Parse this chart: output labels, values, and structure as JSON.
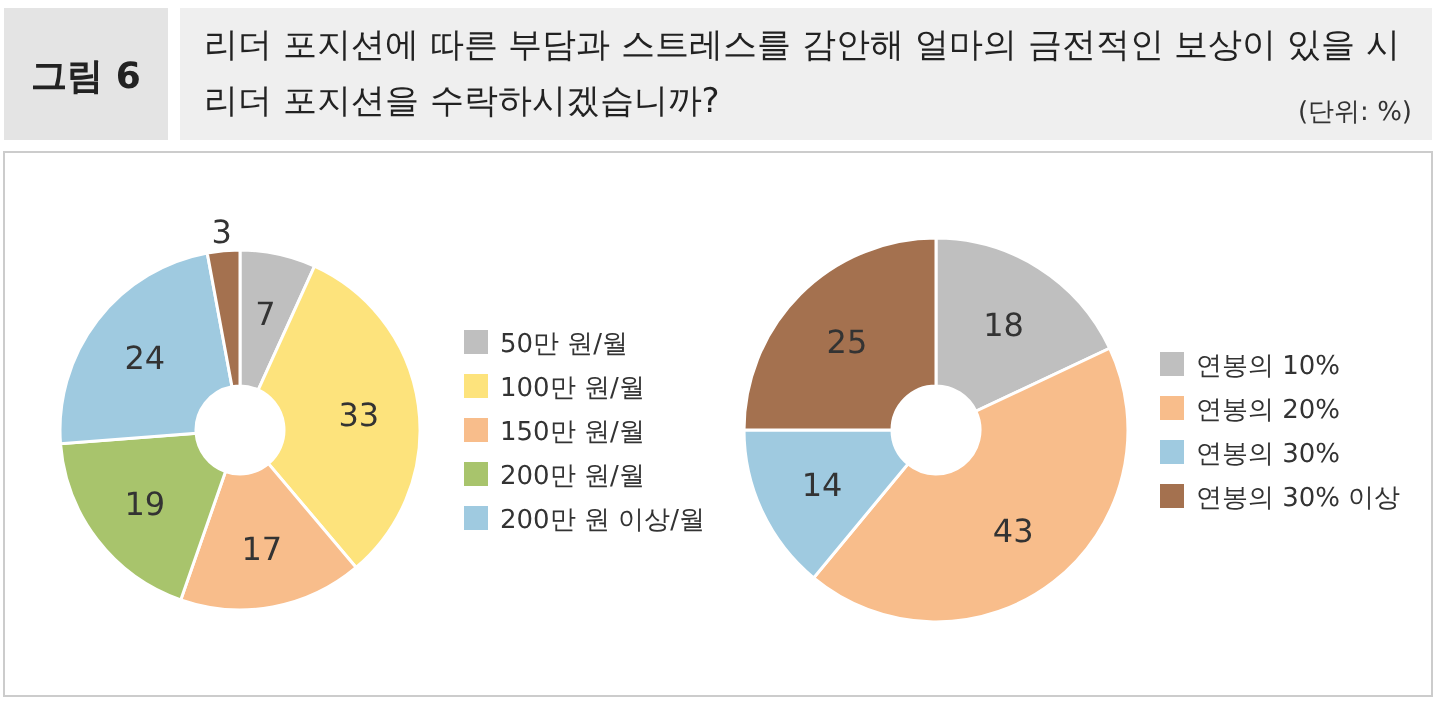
{
  "chart_data": [
    {
      "type": "donut",
      "title": "리더 포지션에 따른 부담과 스트레스를 감안해 얼마의 금전적인 보상이 있을 시 리더 포지션을 수락하시겠습니까?",
      "annotations": [
        "그림 6",
        "(단위: %)"
      ],
      "categories": [
        "50만 원/월",
        "100만 원/월",
        "150만 원/월",
        "200만 원/월",
        "200만 원 이상/월",
        null
      ],
      "values": [
        7,
        33,
        17,
        19,
        24,
        3
      ],
      "colors": [
        "#bfbfbf",
        "#fde37c",
        "#f8bd8b",
        "#a8c46c",
        "#9fcae0",
        "#a4714f"
      ],
      "data_labels": true,
      "legend": "right"
    },
    {
      "type": "donut",
      "categories": [
        "연봉의 10%",
        "연봉의 20%",
        "연봉의 30%",
        "연봉의 30% 이상"
      ],
      "values": [
        18,
        43,
        14,
        25
      ],
      "colors": [
        "#bfbfbf",
        "#f8bd8b",
        "#9fcae0",
        "#a4714f"
      ],
      "data_labels": true,
      "legend": "right"
    }
  ]
}
